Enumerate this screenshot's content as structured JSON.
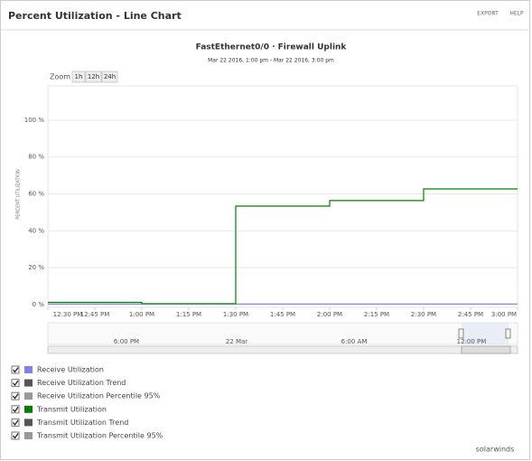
{
  "header": {
    "title": "Percent Utilization - Line Chart",
    "links": [
      "EXPORT",
      "HELP"
    ]
  },
  "zoom": {
    "label": "Zoom",
    "buttons": [
      "1h",
      "12h",
      "24h"
    ]
  },
  "chart_data": {
    "type": "line",
    "title": "FastEthernet0/0 · Firewall Uplink",
    "subtitle": "Mar 22 2016, 1:00 pm - Mar 22 2016, 3:00 pm",
    "y_label": "PERCENT UTILIZATION",
    "categories": [
      "12:30 PM",
      "12:45 PM",
      "1:00 PM",
      "1:15 PM",
      "1:30 PM",
      "1:45 PM",
      "2:00 PM",
      "2:15 PM",
      "2:30 PM",
      "2:45 PM",
      "3:00 PM"
    ],
    "series": [
      {
        "color": "#7b7bef",
        "values": [
          0.3,
          0.3,
          0.3,
          0.3,
          0.3,
          0.3,
          0.3,
          0.3,
          0.3,
          0.3,
          0.3
        ]
      },
      {
        "color": "#008000",
        "values": [
          1.2,
          1.2,
          0.5,
          0.5,
          53.4,
          53.4,
          56.4,
          56.4,
          62.7,
          62.7,
          62.7
        ]
      }
    ],
    "step": true,
    "ylim": [
      -1.5,
      118.6
    ],
    "yticks": [
      {
        "value": 0,
        "label": "0 %"
      },
      {
        "value": 20,
        "label": "20 %"
      },
      {
        "value": 40,
        "label": "40 %"
      },
      {
        "value": 60,
        "label": "60 %"
      },
      {
        "value": 80,
        "label": "80 %"
      },
      {
        "value": 100,
        "label": "100 %"
      }
    ],
    "grid": true,
    "legend": [
      {
        "name": "Receive Utilization",
        "color": "#8080f0"
      },
      {
        "name": "Receive Utilization Trend",
        "color": "#555555"
      },
      {
        "name": "Receive Utilization Percentile 95%",
        "color": "#999999"
      },
      {
        "name": "Transmit Utilization",
        "color": "#008000"
      },
      {
        "name": "Transmit Utilization Trend",
        "color": "#555555"
      },
      {
        "name": "Transmit Utilization Percentile 95%",
        "color": "#999999"
      }
    ]
  },
  "navigator": {
    "labels": [
      "6:00 PM",
      "22 Mar",
      "6:00 AM",
      "12:00 PM"
    ]
  },
  "footer": {
    "brand": "solarwinds"
  }
}
